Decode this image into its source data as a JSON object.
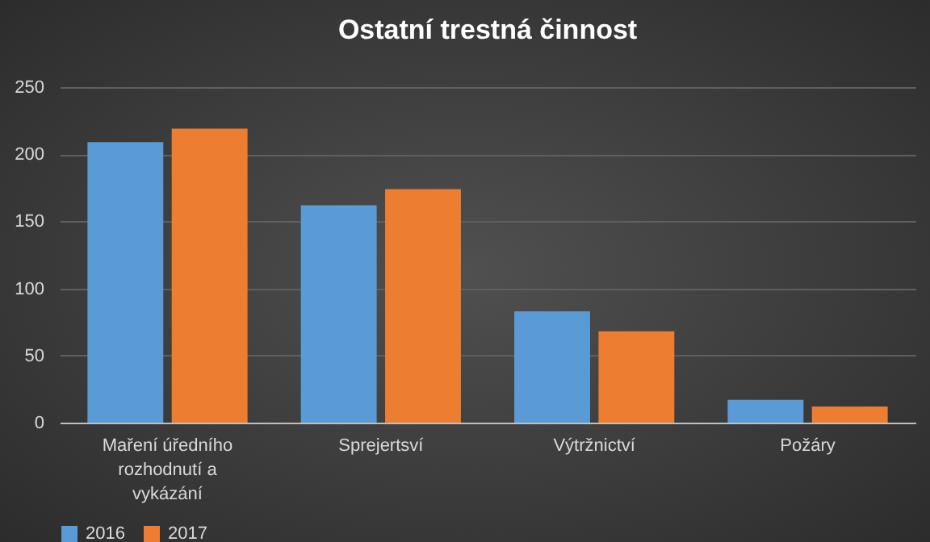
{
  "chart_data": {
    "type": "bar",
    "title": "Ostatní  trestná  činnost",
    "categories": [
      "Maření úředního rozhodnutí a vykázání",
      "Sprejertsví",
      "Výtržnictví",
      "Požáry"
    ],
    "series": [
      {
        "name": "2016",
        "color": "#5b9bd5",
        "values": [
          209,
          162,
          83,
          17
        ]
      },
      {
        "name": "2017",
        "color": "#ed7d31",
        "values": [
          219,
          174,
          68,
          12
        ]
      }
    ],
    "ylim": [
      0,
      250
    ],
    "yticks": [
      0,
      50,
      100,
      150,
      200,
      250
    ],
    "grid": "y",
    "legend": "bottom"
  }
}
